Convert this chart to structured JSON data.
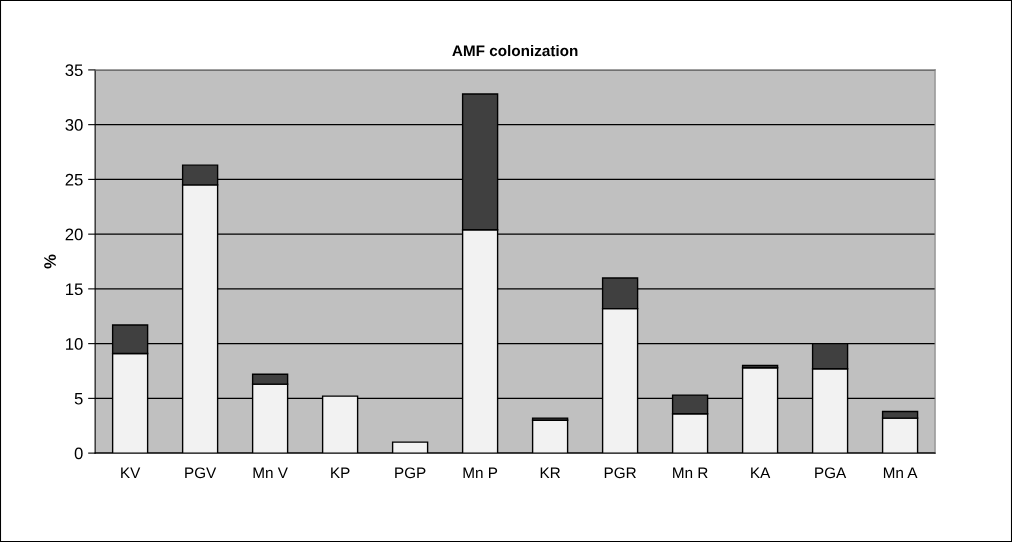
{
  "chart_data": {
    "type": "bar",
    "title": "AMF colonization",
    "ylabel": "%",
    "stacked": true,
    "categories": [
      "KV",
      "PGV",
      "Mn V",
      "KP",
      "PGP",
      "Mn P",
      "KR",
      "PGR",
      "Mn R",
      "KA",
      "PGA",
      "Mn A"
    ],
    "series": [
      {
        "color": "#f2f2f2",
        "values": [
          9.1,
          24.5,
          6.3,
          5.2,
          1.0,
          20.4,
          3.0,
          13.2,
          3.6,
          7.8,
          7.7,
          3.2
        ]
      },
      {
        "color": "#404040",
        "values": [
          2.6,
          1.8,
          0.9,
          null,
          null,
          12.4,
          0.2,
          2.8,
          1.7,
          0.2,
          2.3,
          0.6
        ]
      }
    ],
    "ylim": [
      0,
      35
    ],
    "yticks": [
      0,
      5,
      10,
      15,
      20,
      25,
      30,
      35
    ],
    "grid": "y",
    "legend": false
  }
}
